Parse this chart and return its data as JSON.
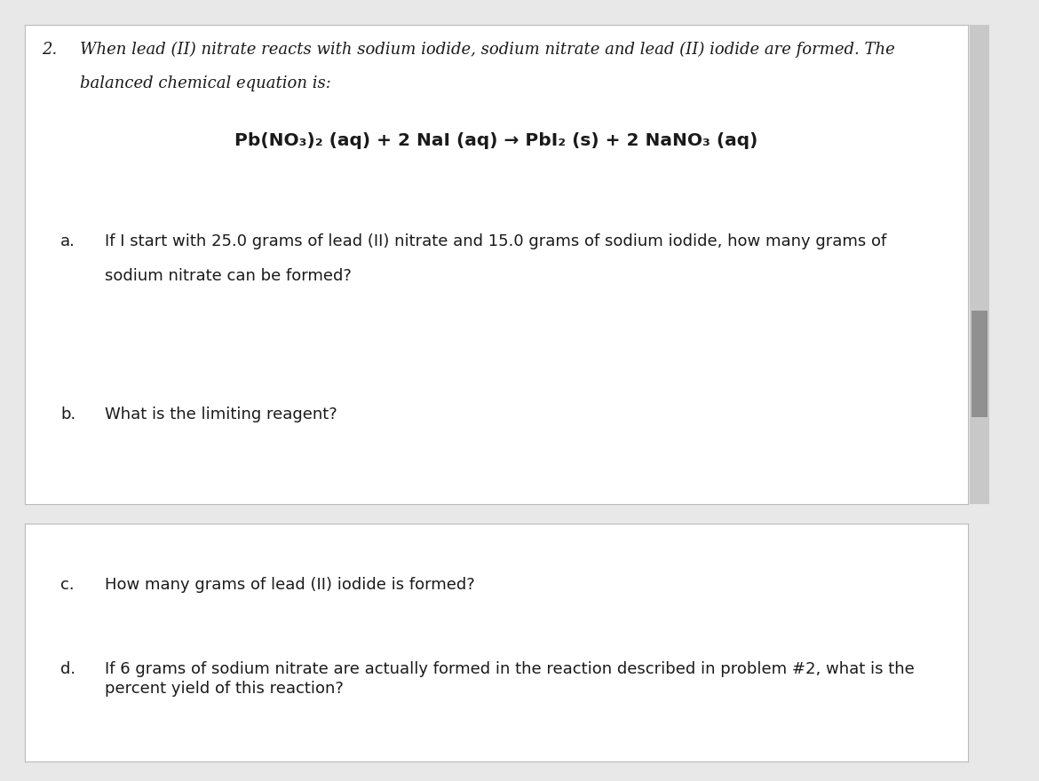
{
  "bg_color": "#e8e8e8",
  "box1_bg": "#ffffff",
  "box2_bg": "#ffffff",
  "text_color": "#1a1a1a",
  "font_size_intro": 13.0,
  "font_size_eq": 14.5,
  "font_size_questions": 13.0,
  "scrollbar_color": "#c8c8c8",
  "scrollbar_thumb": "#909090",
  "intro_line1": "When lead (II) nitrate reacts with sodium iodide, sodium nitrate and lead (II) iodide are formed. The",
  "intro_line2": "balanced chemical equation is:",
  "eq_part1": "Pb(NO",
  "eq_part2": "3",
  "eq_part3": ")",
  "eq_part4": "2",
  "eq_part5": " (aq) + 2 NaI",
  "eq_part6": " (aq)",
  "eq_part7": " → PbI",
  "eq_part8": "2",
  "eq_part9": " (s) + 2 NaNO",
  "eq_part10": "3",
  "eq_part11": " (aq)",
  "qa_label": "a.",
  "qa_line1": "If I start with 25.0 grams of lead (II) nitrate and 15.0 grams of sodium iodide, how many grams of",
  "qa_line2": "sodium nitrate can be formed?",
  "qb_label": "b.",
  "qb_text": "What is the limiting reagent?",
  "qc_label": "c.",
  "qc_text": "How many grams of lead (II) iodide is formed?",
  "qd_label": "d.",
  "qd_line1": "If 6 grams of sodium nitrate are actually formed in the reaction described in problem #2, what is the",
  "qd_line2": "percent yield of this reaction?"
}
